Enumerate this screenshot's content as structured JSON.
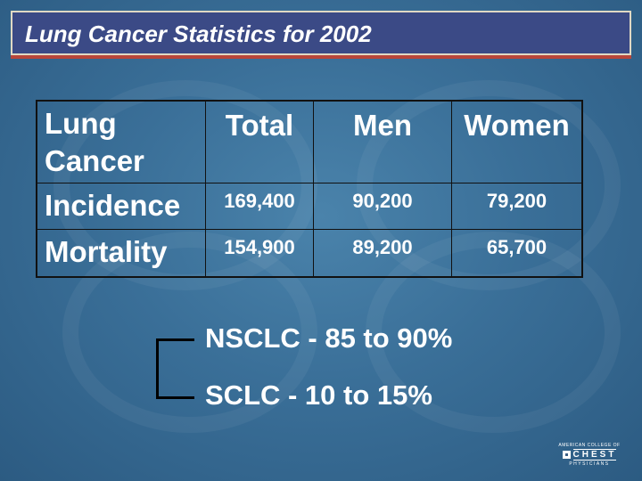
{
  "slide": {
    "title": "Lung Cancer Statistics for 2002"
  },
  "table": {
    "corner": [
      "Lung",
      "Cancer"
    ],
    "columns": [
      "Total",
      "Men",
      "Women"
    ],
    "rows": [
      {
        "label": "Incidence",
        "values": [
          "169,400",
          "90,200",
          "79,200"
        ]
      },
      {
        "label": "Mortality",
        "values": [
          "154,900",
          "89,200",
          "65,700"
        ]
      }
    ]
  },
  "subtypes": [
    {
      "text": "NSCLC - 85 to 90%"
    },
    {
      "text": "SCLC - 10 to 15%"
    }
  ],
  "logo": {
    "top": "AMERICAN COLLEGE OF",
    "name": "CHEST",
    "bottom": "PHYSICIANS"
  }
}
